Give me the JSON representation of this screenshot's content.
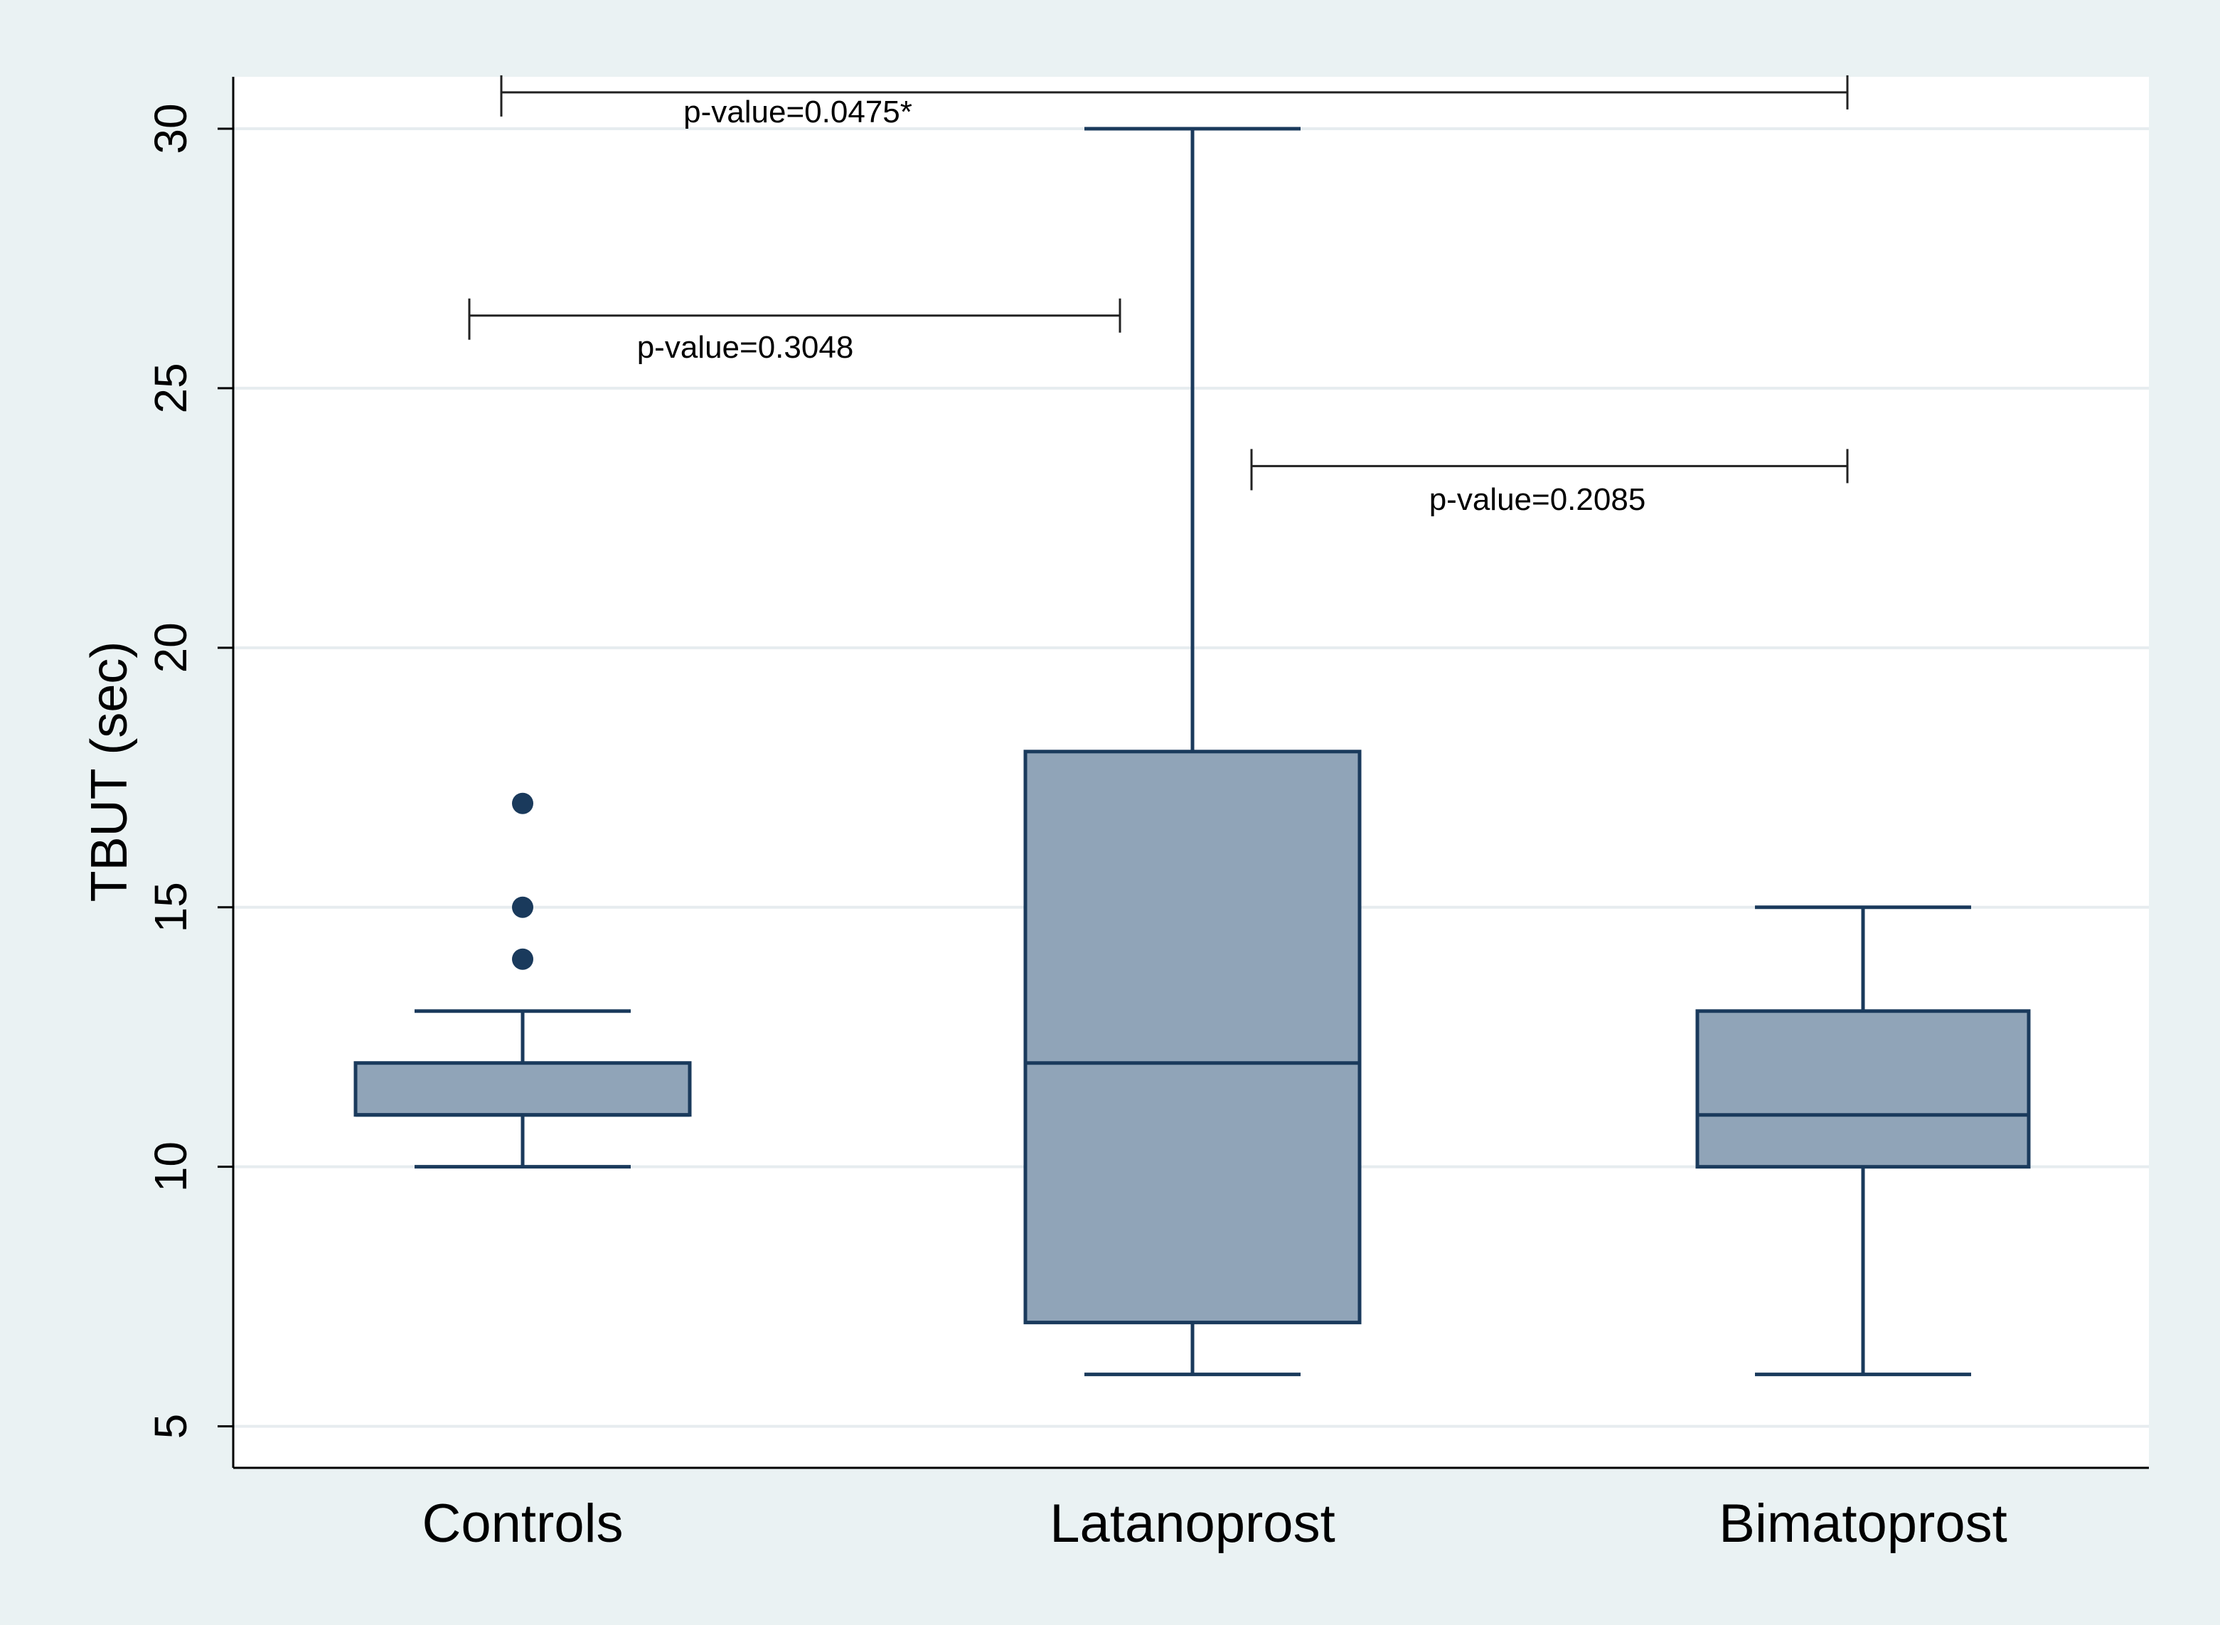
{
  "chart_data": {
    "type": "box",
    "title": "",
    "xlabel": "",
    "ylabel": "TBUT (sec)",
    "ylim": [
      4.2,
      31.0
    ],
    "yticks": [
      5,
      10,
      15,
      20,
      25,
      30
    ],
    "grid": true,
    "categories": [
      "Controls",
      "Latanoprost",
      "Bimatoprost"
    ],
    "boxes": [
      {
        "name": "Controls",
        "whisker_low": 10,
        "q1": 11,
        "median": 11,
        "q3": 12,
        "whisker_high": 13,
        "outliers": [
          14,
          15,
          17
        ]
      },
      {
        "name": "Latanoprost",
        "whisker_low": 6,
        "q1": 7,
        "median": 12,
        "q3": 18,
        "whisker_high": 30,
        "outliers": []
      },
      {
        "name": "Bimatoprost",
        "whisker_low": 6,
        "q1": 10,
        "median": 11,
        "q3": 13,
        "whisker_high": 15,
        "outliers": []
      }
    ],
    "comparisons": [
      {
        "from": "Controls",
        "to": "Bimatoprost",
        "y": 30.7,
        "label": "p-value=0.0475*"
      },
      {
        "from": "Controls",
        "to": "Latanoprost",
        "y": 26.4,
        "label": "p-value=0.3048"
      },
      {
        "from": "Latanoprost",
        "to": "Bimatoprost",
        "y": 23.5,
        "label": "p-value=0.2085"
      }
    ],
    "colors": {
      "outer_background": "#eaf2f3",
      "plot_background": "#ffffff",
      "box_fill": "#90a4b8",
      "box_stroke": "#1a3a5c",
      "grid": "#e6ecef",
      "axis": "#000000"
    }
  }
}
